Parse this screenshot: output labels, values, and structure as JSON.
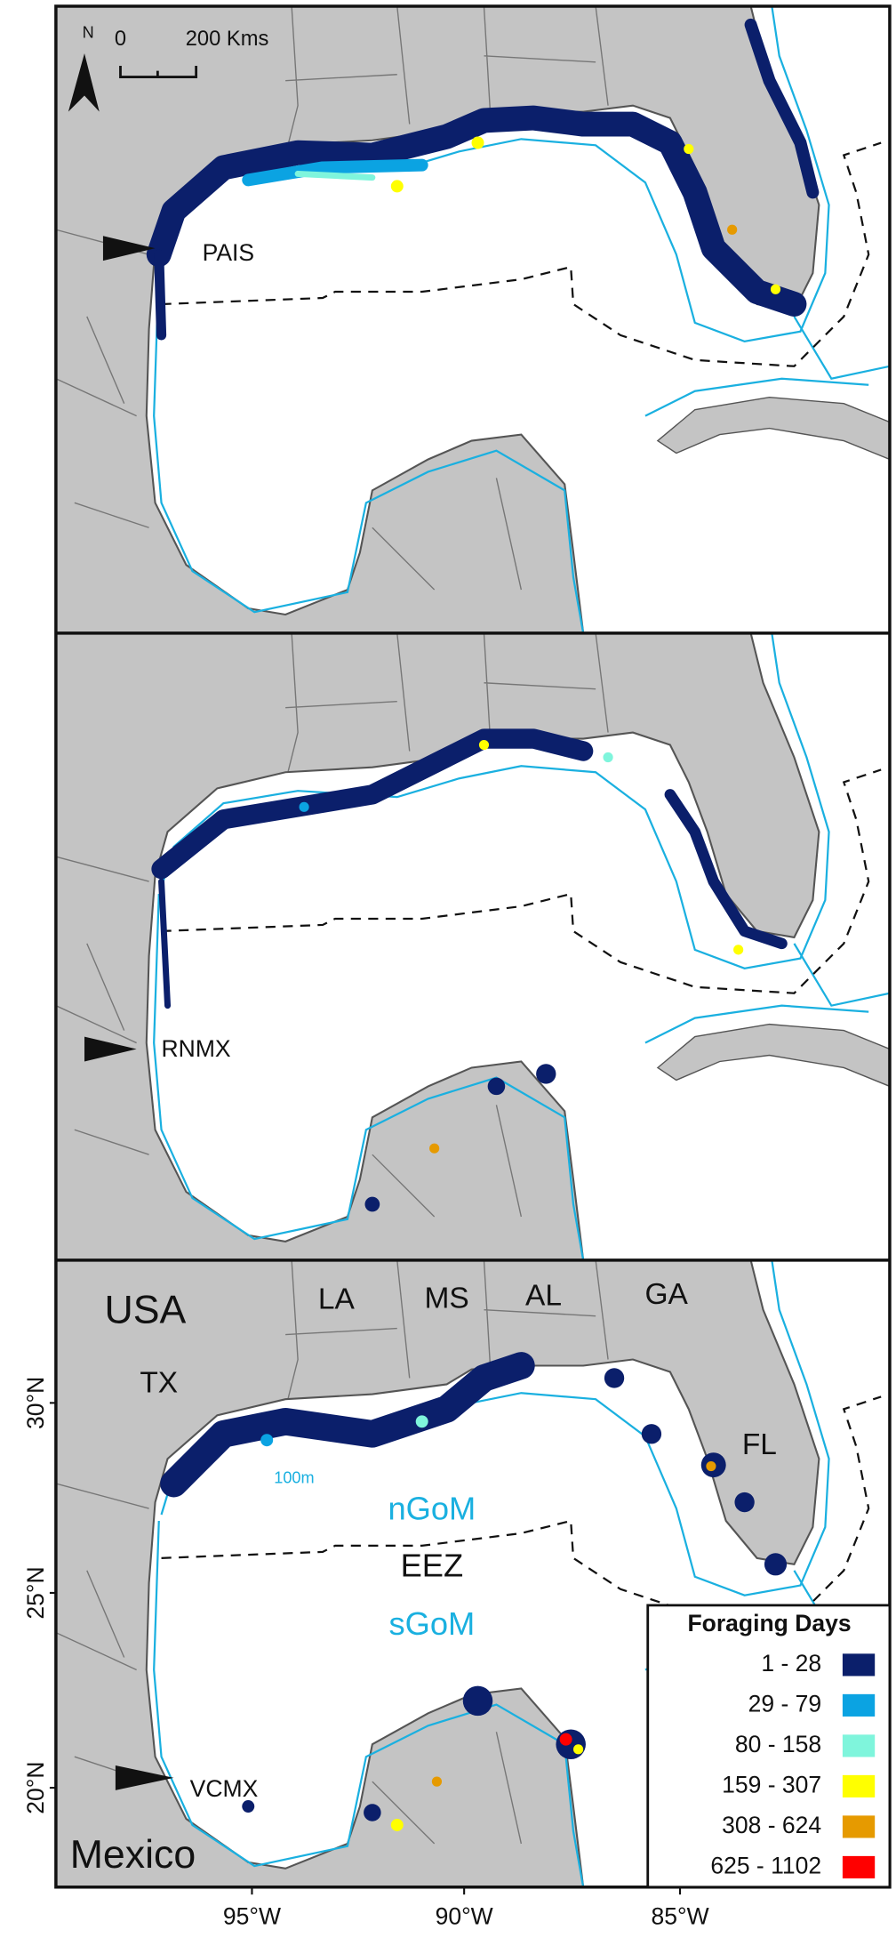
{
  "map": {
    "panels": [
      {
        "site": "PAIS"
      },
      {
        "site": "RNMX"
      },
      {
        "site": "VCMX"
      }
    ],
    "north": "N",
    "scale_bar": {
      "start": "0",
      "end": "200 Kms"
    },
    "region_labels": [
      "USA",
      "TX",
      "LA",
      "MS",
      "AL",
      "GA",
      "FL",
      "Mexico"
    ],
    "water_labels": {
      "contour": "100m",
      "north": "nGoM",
      "boundary": "EEZ",
      "south": "sGoM"
    },
    "lat_labels": [
      "30°N",
      "25°N",
      "20°N"
    ],
    "lon_labels": [
      "95°W",
      "90°W",
      "85°W"
    ],
    "legend": {
      "title": "Foraging Days",
      "items": [
        {
          "label": "1 - 28",
          "color": "#0b1f6b"
        },
        {
          "label": "29 - 79",
          "color": "#0ba3e2"
        },
        {
          "label": "80 - 158",
          "color": "#7ff5dc"
        },
        {
          "label": "159 - 307",
          "color": "#ffff00"
        },
        {
          "label": "308 - 624",
          "color": "#e69a00"
        },
        {
          "label": "625 - 1102",
          "color": "#ff0000"
        }
      ]
    }
  }
}
